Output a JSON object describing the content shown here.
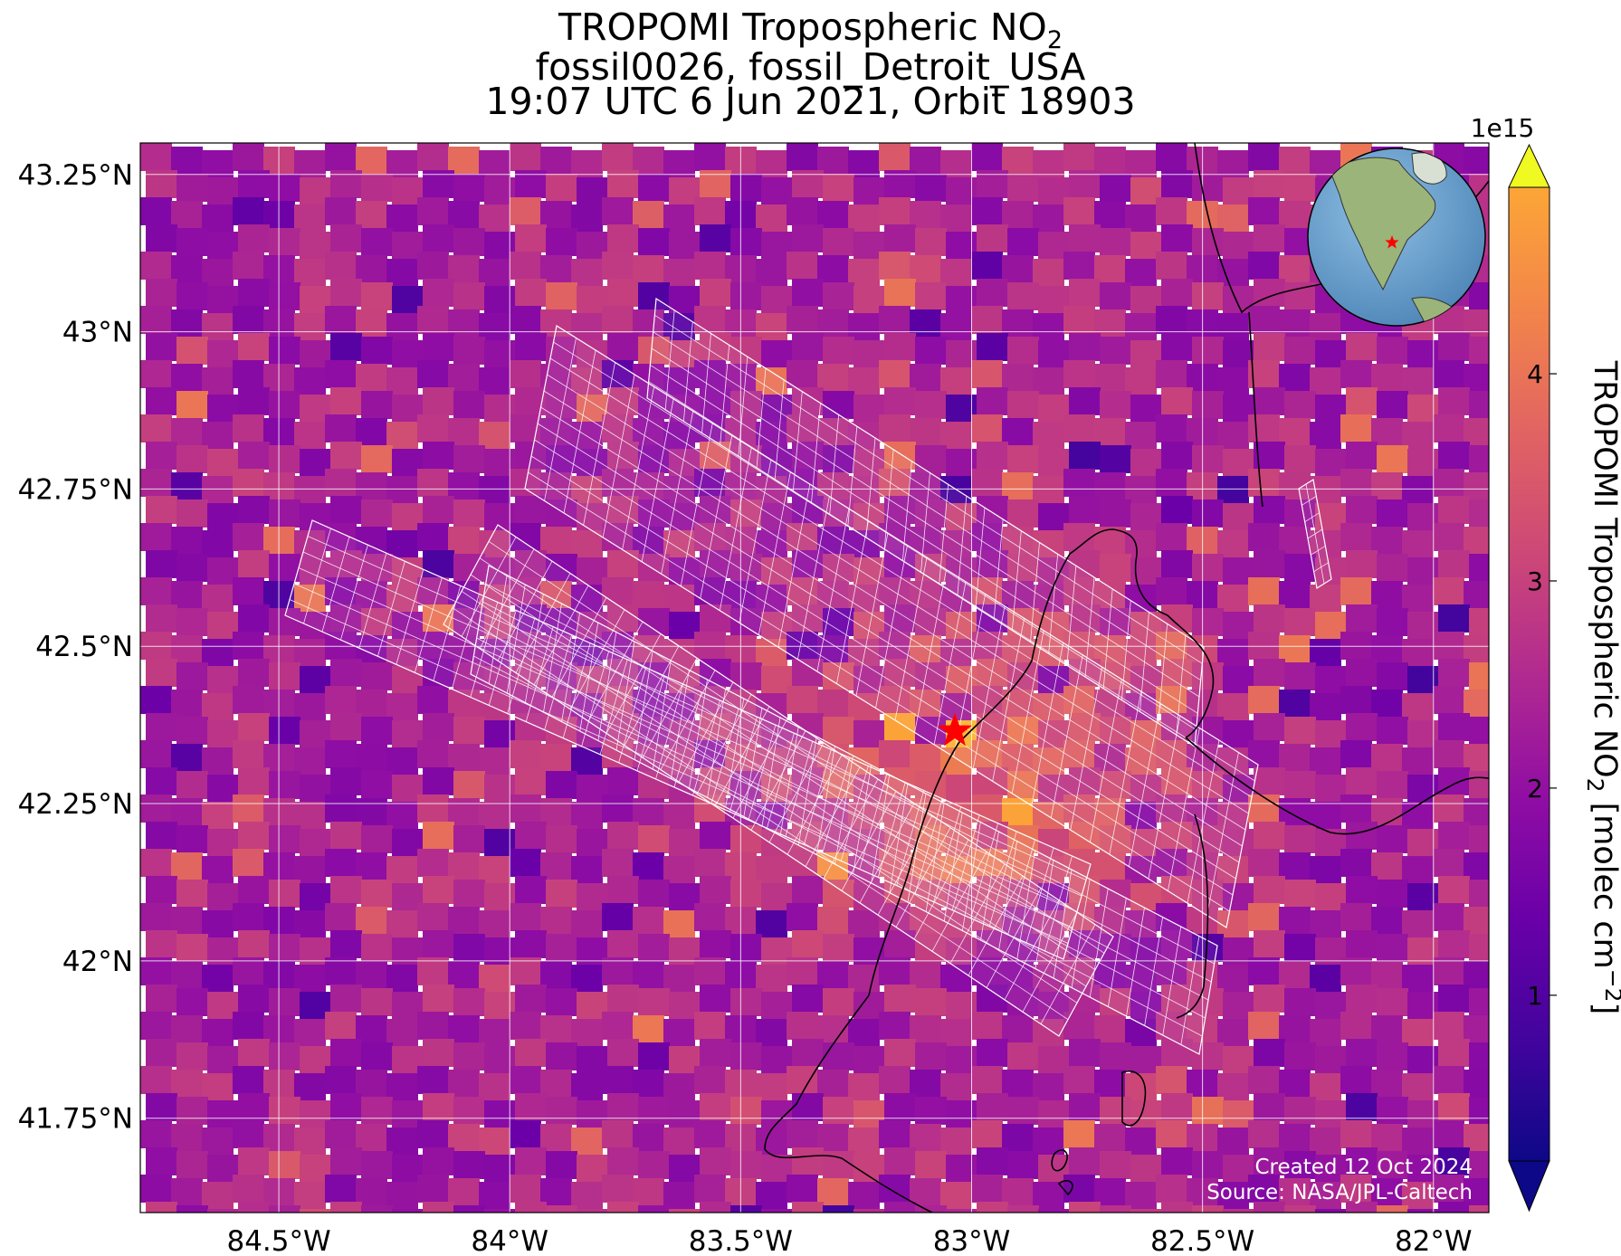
{
  "title": {
    "line1_prefix": "TROPOMI Tropospheric NO",
    "line1_sub": "2",
    "line2": "fossil0026, fossil_Detroit_USA",
    "line3": "19:07 UTC 6 Jun 2021, Orbit 18903"
  },
  "axes": {
    "lon_ticks": [
      "84.5°W",
      "84°W",
      "83.5°W",
      "83°W",
      "82.5°W",
      "82°W"
    ],
    "lat_ticks": [
      "43.25°N",
      "43°N",
      "42.75°N",
      "42.5°N",
      "42.25°N",
      "42°N",
      "41.75°N"
    ],
    "lon_values": [
      -84.5,
      -84.0,
      -83.5,
      -83.0,
      -82.5,
      -82.0
    ],
    "lat_values": [
      43.25,
      43.0,
      42.75,
      42.5,
      42.25,
      42.0,
      41.75
    ],
    "lon_range": [
      -84.8,
      -81.88
    ],
    "lat_range": [
      41.6,
      43.3
    ]
  },
  "colorbar": {
    "label_prefix": "TROPOMI Tropospheric NO",
    "label_sub": "2",
    "label_suffix": " [molec cm",
    "label_sup": "−2",
    "label_end": "]",
    "scale_note": "1e15",
    "ticks": [
      "1",
      "2",
      "3",
      "4"
    ],
    "tick_values": [
      1,
      2,
      3,
      4
    ],
    "range": [
      0.2,
      4.9
    ],
    "colormap": "plasma",
    "extend": "both"
  },
  "site": {
    "lon": -83.05,
    "lat": 42.33,
    "marker": "star",
    "color": "#ff0000"
  },
  "inset": {
    "type": "globe",
    "marker_color": "#ff0000"
  },
  "credits": {
    "created": "Created 12 Oct 2024",
    "source": "Source: NASA/JPL-Caltech"
  },
  "colors": {
    "gridline": "#ffffff",
    "swath_outline": "#ffffff",
    "coastline": "#000000",
    "ocean": "#6a9ec8",
    "land": "#9bb47a"
  }
}
